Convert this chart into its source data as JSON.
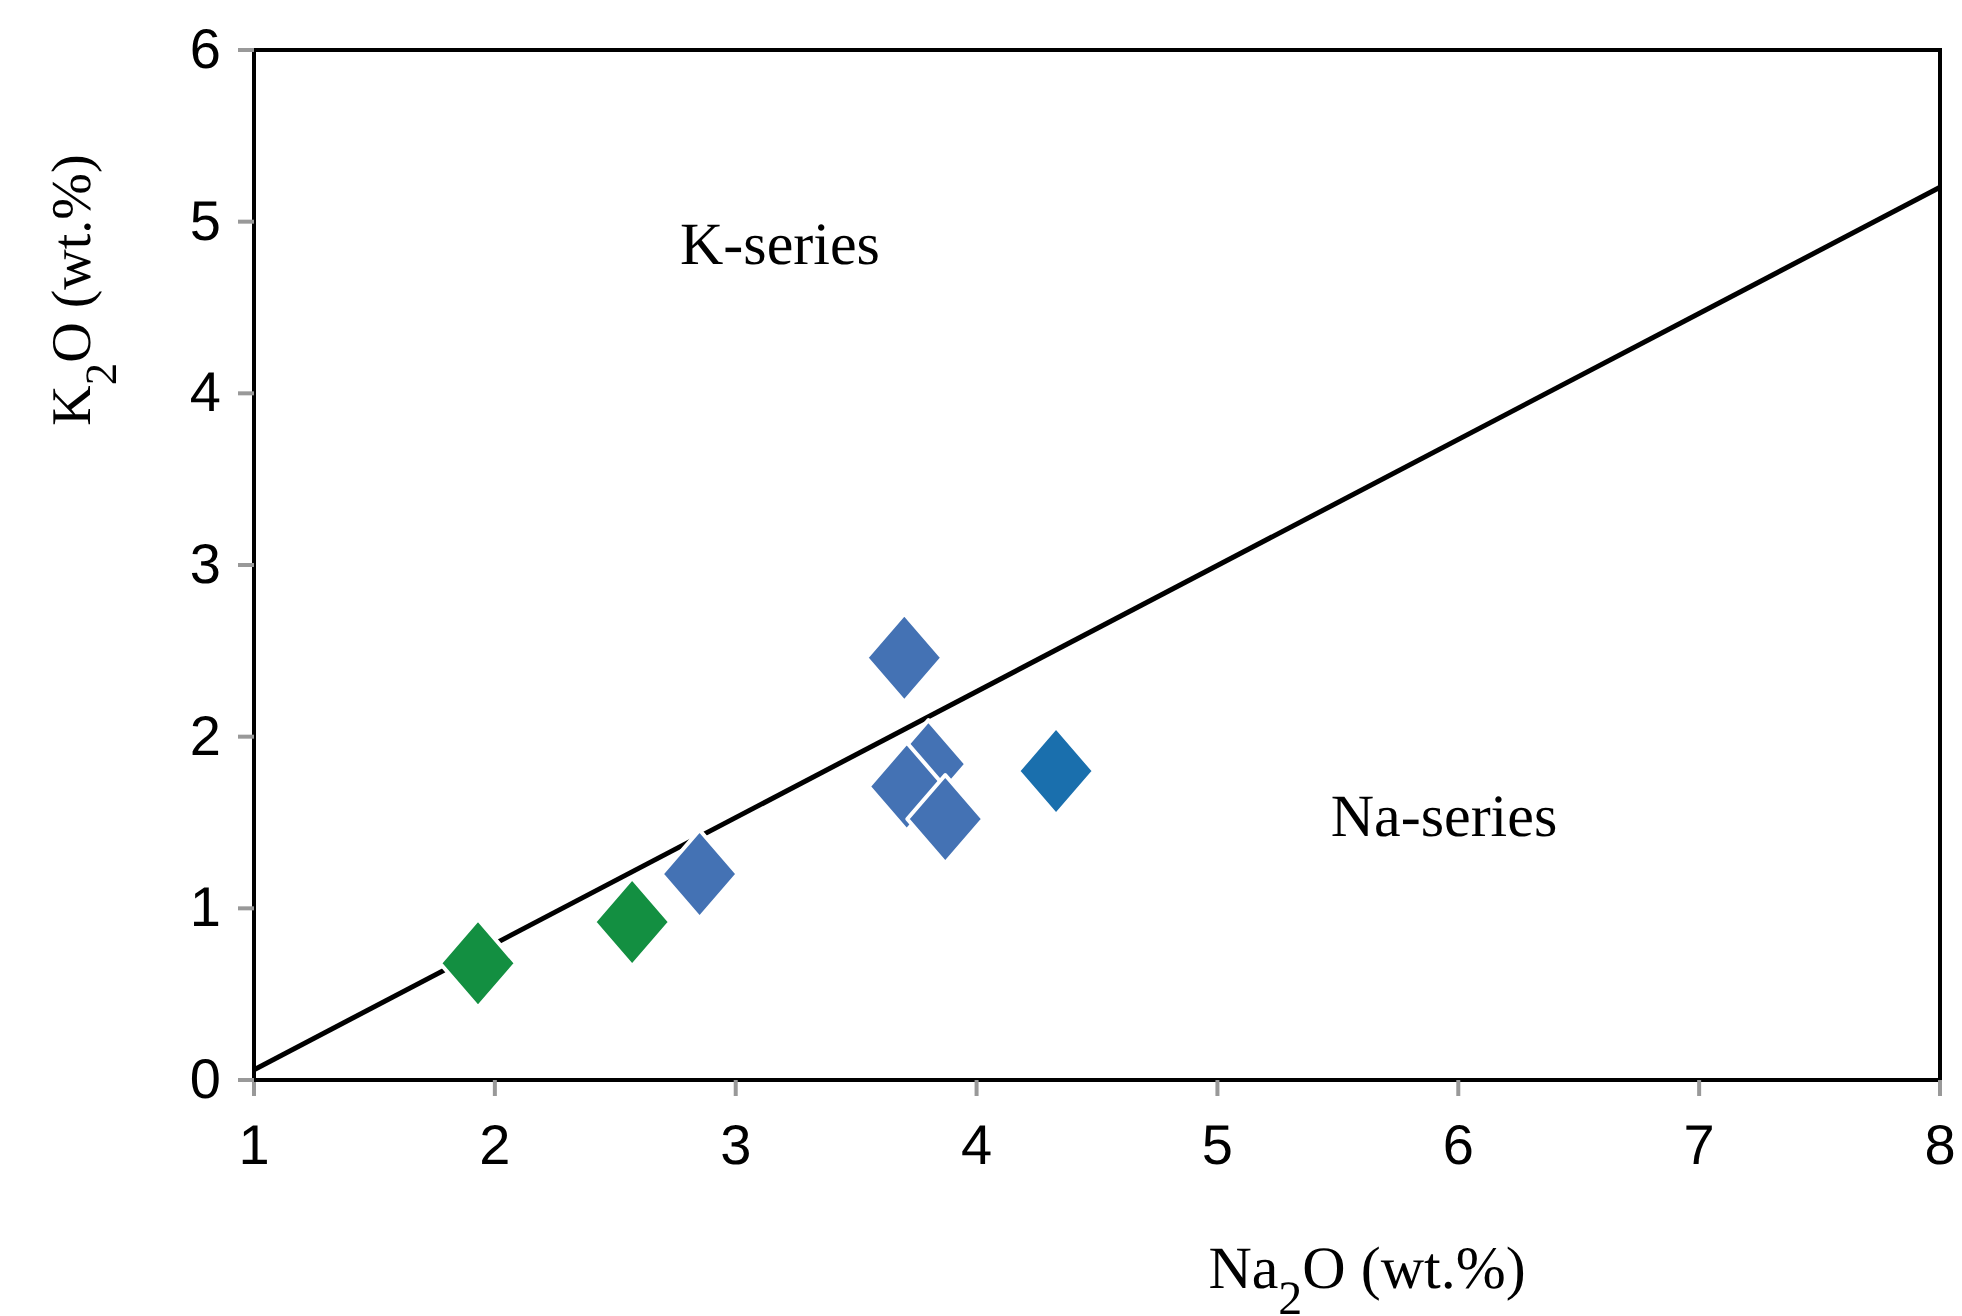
{
  "chart_data": {
    "type": "scatter",
    "xlabel": "Na$_{2}$O (wt.%)",
    "ylabel": "K$_{2}$O (wt.%)",
    "xlim": [
      1,
      8
    ],
    "ylim": [
      0,
      6
    ],
    "xticks": [
      1,
      2,
      3,
      4,
      5,
      6,
      7,
      8
    ],
    "yticks": [
      0,
      1,
      2,
      3,
      4,
      5,
      6
    ],
    "grid": false,
    "marker": "diamond",
    "series": [
      {
        "color": "#138f41",
        "x": [
          1.93,
          2.57
        ],
        "values": [
          0.68,
          0.92
        ]
      },
      {
        "color": "#4472b4",
        "x": [
          2.85,
          3.8,
          3.71,
          3.87
        ],
        "values": [
          1.2,
          1.84,
          1.71,
          1.52
        ]
      },
      {
        "color": "#4472b4",
        "x": [
          3.7
        ],
        "values": [
          2.46
        ]
      },
      {
        "color": "#1a6fad",
        "x": [
          4.33
        ],
        "values": [
          1.8
        ]
      },
      {
        "type": "line",
        "color": "#000000",
        "marker": "none",
        "x": [
          1,
          8
        ],
        "values": [
          0.06,
          5.2
        ]
      }
    ],
    "annotations": [
      "K-series",
      "Na-series"
    ]
  }
}
